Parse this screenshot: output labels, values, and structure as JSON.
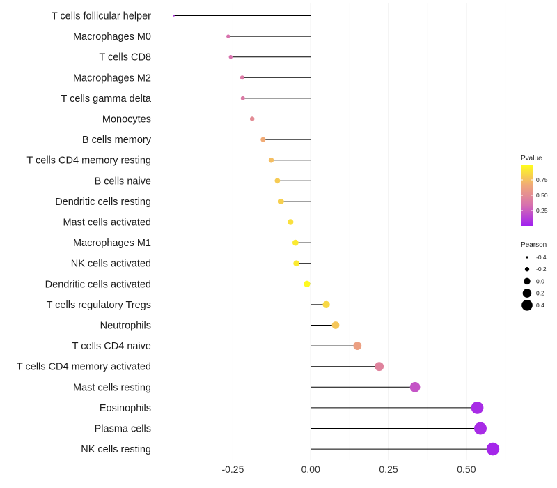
{
  "chart_data": {
    "type": "lollipop",
    "title": "",
    "xlabel": "",
    "ylabel": "",
    "xlim": [
      -0.45,
      0.63
    ],
    "x_ticks": [
      -0.25,
      0.0,
      0.25,
      0.5
    ],
    "x_tick_labels": [
      "-0.25",
      "0.00",
      "0.25",
      "0.50"
    ],
    "grid": true,
    "categories": [
      "T cells follicular helper",
      "Macrophages M0",
      "T cells CD8",
      "Macrophages M2",
      "T cells gamma delta",
      "Monocytes",
      "B cells memory",
      "T cells CD4 memory resting",
      "B cells naive",
      "Dendritic cells resting",
      "Mast cells activated",
      "Macrophages M1",
      "NK cells activated",
      "Dendritic cells activated",
      "T cells regulatory  Tregs",
      "Neutrophils",
      "T cells CD4 naive",
      "T cells CD4 memory activated",
      "Mast cells resting",
      "Eosinophils",
      "Plasma cells",
      "NK cells resting"
    ],
    "values": [
      -0.44,
      -0.265,
      -0.257,
      -0.22,
      -0.218,
      -0.188,
      -0.153,
      -0.127,
      -0.107,
      -0.095,
      -0.065,
      -0.049,
      -0.046,
      -0.012,
      0.05,
      0.08,
      0.15,
      0.22,
      0.335,
      0.535,
      0.545,
      0.585
    ],
    "pvalues": [
      0.1,
      0.35,
      0.35,
      0.4,
      0.4,
      0.5,
      0.68,
      0.75,
      0.8,
      0.82,
      0.88,
      0.92,
      0.92,
      0.98,
      0.85,
      0.78,
      0.62,
      0.45,
      0.22,
      0.05,
      0.05,
      0.03
    ],
    "color_legend": {
      "title": "Pvalue",
      "ticks": [
        0.25,
        0.5,
        0.75
      ],
      "tick_labels": [
        "0.25",
        "0.50",
        "0.75"
      ],
      "range": [
        0.0,
        1.0
      ],
      "colors": [
        "#a020f0",
        "#d66fb0",
        "#f0a87a",
        "#ffff1a"
      ]
    },
    "size_legend": {
      "title": "Pearson",
      "values": [
        -0.4,
        -0.2,
        0.0,
        0.2,
        0.4
      ],
      "labels": [
        "-0.4",
        "-0.2",
        "0.0",
        "0.2",
        "0.4"
      ]
    }
  }
}
